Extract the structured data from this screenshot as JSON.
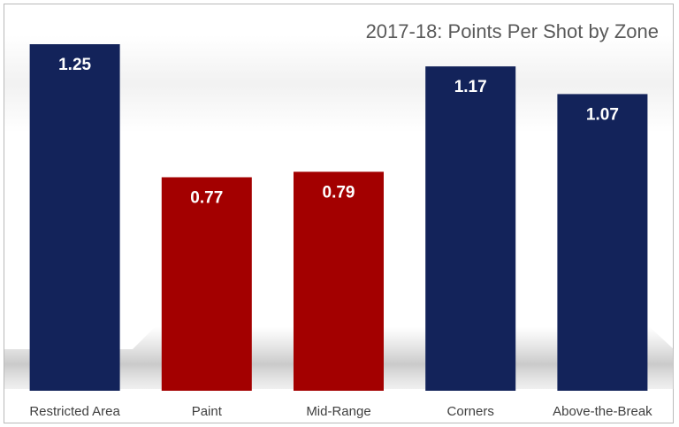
{
  "chart_data": {
    "type": "bar",
    "title": "2017-18: Points Per Shot by Zone",
    "xlabel": "",
    "ylabel": "",
    "categories": [
      "Restricted Area",
      "Paint",
      "Mid-Range",
      "Corners",
      "Above-the-Break"
    ],
    "values": [
      1.25,
      0.77,
      0.79,
      1.17,
      1.07
    ],
    "data_labels": [
      "1.25",
      "0.77",
      "0.79",
      "1.17",
      "1.07"
    ],
    "bar_colors": [
      "#13235a",
      "#a30000",
      "#a30000",
      "#13235a",
      "#13235a"
    ],
    "ylim": [
      0,
      1.25
    ],
    "grid": false,
    "legend": "none",
    "axis_visible": false
  }
}
